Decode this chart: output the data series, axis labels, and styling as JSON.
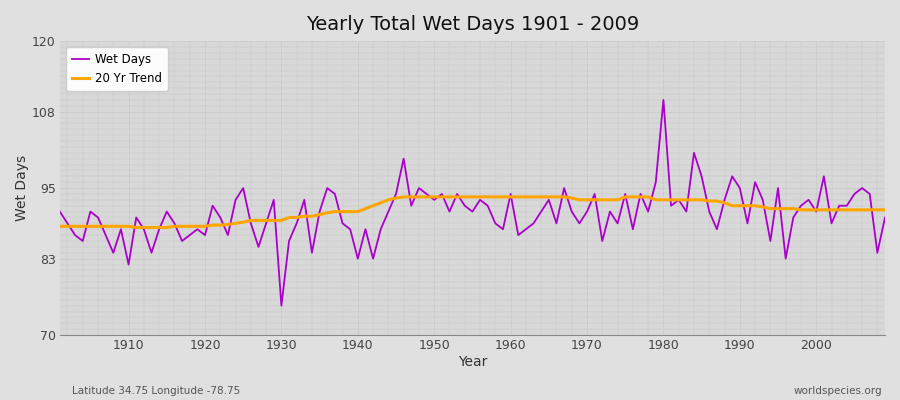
{
  "title": "Yearly Total Wet Days 1901 - 2009",
  "xlabel": "Year",
  "ylabel": "Wet Days",
  "ylim": [
    70,
    120
  ],
  "yticks": [
    70,
    83,
    95,
    108,
    120
  ],
  "xlim": [
    1901,
    2009
  ],
  "xticks": [
    1910,
    1920,
    1930,
    1940,
    1950,
    1960,
    1970,
    1980,
    1990,
    2000
  ],
  "background_color": "#e0e0e0",
  "plot_bg_color": "#d8d8d8",
  "wet_days_color": "#aa00cc",
  "trend_color": "#ffa500",
  "legend_labels": [
    "Wet Days",
    "20 Yr Trend"
  ],
  "footer_left": "Latitude 34.75 Longitude -78.75",
  "footer_right": "worldspecies.org",
  "years": [
    1901,
    1902,
    1903,
    1904,
    1905,
    1906,
    1907,
    1908,
    1909,
    1910,
    1911,
    1912,
    1913,
    1914,
    1915,
    1916,
    1917,
    1918,
    1919,
    1920,
    1921,
    1922,
    1923,
    1924,
    1925,
    1926,
    1927,
    1928,
    1929,
    1930,
    1931,
    1932,
    1933,
    1934,
    1935,
    1936,
    1937,
    1938,
    1939,
    1940,
    1941,
    1942,
    1943,
    1944,
    1945,
    1946,
    1947,
    1948,
    1949,
    1950,
    1951,
    1952,
    1953,
    1954,
    1955,
    1956,
    1957,
    1958,
    1959,
    1960,
    1961,
    1962,
    1963,
    1964,
    1965,
    1966,
    1967,
    1968,
    1969,
    1970,
    1971,
    1972,
    1973,
    1974,
    1975,
    1976,
    1977,
    1978,
    1979,
    1980,
    1981,
    1982,
    1983,
    1984,
    1985,
    1986,
    1987,
    1988,
    1989,
    1990,
    1991,
    1992,
    1993,
    1994,
    1995,
    1996,
    1997,
    1998,
    1999,
    2000,
    2001,
    2002,
    2003,
    2004,
    2005,
    2006,
    2007,
    2008,
    2009
  ],
  "wet_days": [
    91,
    89,
    87,
    86,
    91,
    90,
    87,
    84,
    88,
    82,
    90,
    88,
    84,
    88,
    91,
    89,
    86,
    87,
    88,
    87,
    92,
    90,
    87,
    93,
    95,
    89,
    85,
    89,
    93,
    75,
    86,
    89,
    93,
    84,
    91,
    95,
    94,
    89,
    88,
    83,
    88,
    83,
    88,
    91,
    94,
    100,
    92,
    95,
    94,
    93,
    94,
    91,
    94,
    92,
    91,
    93,
    92,
    89,
    88,
    94,
    87,
    88,
    89,
    91,
    93,
    89,
    95,
    91,
    89,
    91,
    94,
    86,
    91,
    89,
    94,
    88,
    94,
    91,
    96,
    110,
    92,
    93,
    91,
    101,
    97,
    91,
    88,
    93,
    97,
    95,
    89,
    96,
    93,
    86,
    95,
    83,
    90,
    92,
    93,
    91,
    97,
    89,
    92,
    92,
    94,
    95,
    94,
    84,
    90
  ],
  "trend": [
    88.5,
    88.5,
    88.5,
    88.5,
    88.5,
    88.5,
    88.5,
    88.5,
    88.5,
    88.5,
    88.3,
    88.3,
    88.3,
    88.3,
    88.3,
    88.5,
    88.5,
    88.5,
    88.5,
    88.5,
    88.7,
    88.7,
    88.8,
    89.0,
    89.2,
    89.5,
    89.5,
    89.5,
    89.5,
    89.5,
    90.0,
    90.0,
    90.2,
    90.2,
    90.5,
    90.8,
    91.0,
    91.0,
    91.0,
    91.0,
    91.5,
    92.0,
    92.5,
    93.0,
    93.3,
    93.5,
    93.5,
    93.5,
    93.5,
    93.5,
    93.5,
    93.5,
    93.5,
    93.5,
    93.5,
    93.5,
    93.5,
    93.5,
    93.5,
    93.5,
    93.5,
    93.5,
    93.5,
    93.5,
    93.5,
    93.5,
    93.5,
    93.3,
    93.0,
    93.0,
    93.0,
    93.0,
    93.0,
    93.0,
    93.5,
    93.5,
    93.5,
    93.5,
    93.0,
    93.0,
    93.0,
    93.0,
    93.0,
    93.0,
    93.0,
    92.8,
    92.8,
    92.5,
    92.0,
    92.0,
    92.0,
    92.0,
    91.8,
    91.5,
    91.5,
    91.5,
    91.5,
    91.3,
    91.3,
    91.3,
    91.3,
    91.3,
    91.3,
    91.3,
    91.3,
    91.3,
    91.3,
    91.3,
    91.3
  ]
}
